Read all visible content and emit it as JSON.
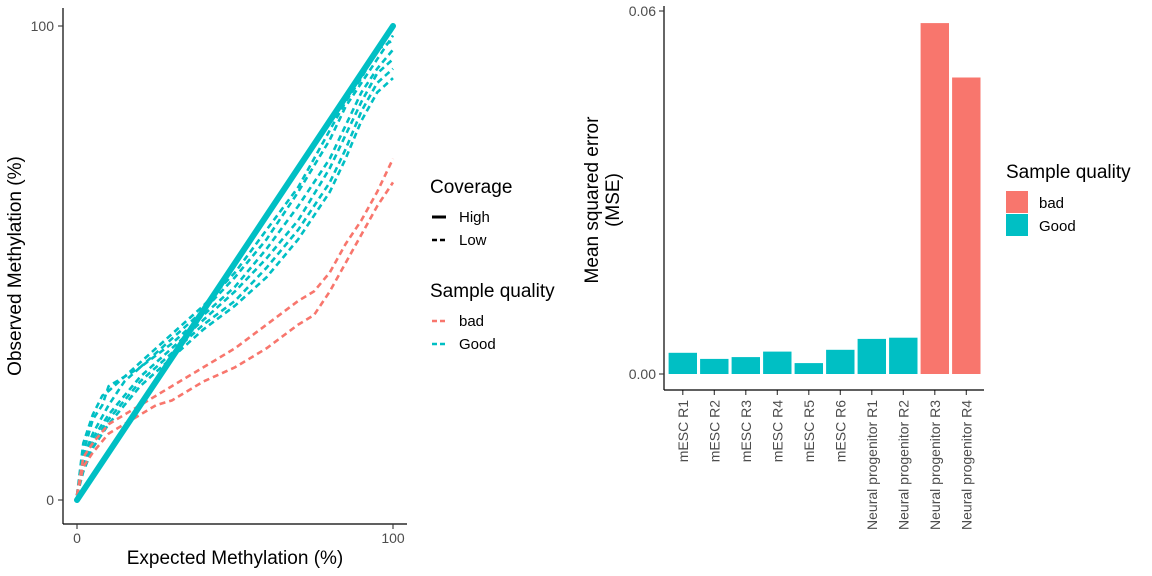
{
  "colors": {
    "bad": "#F8766D",
    "good": "#00BFC4"
  },
  "chart_data": [
    {
      "type": "line",
      "xlabel": "Expected Methylation (%)",
      "ylabel": "Observed Methylation (%)",
      "xlim": [
        0,
        100
      ],
      "ylim": [
        0,
        100
      ],
      "x_ticks": [
        "0",
        "100"
      ],
      "y_ticks": [
        "0",
        "100"
      ],
      "grid": false,
      "legend": {
        "placement": "right",
        "coverage_title": "Coverage",
        "coverage_items": [
          {
            "label": "High",
            "linetype": "solid"
          },
          {
            "label": "Low",
            "linetype": "dashed"
          }
        ],
        "quality_title": "Sample quality",
        "quality_items": [
          {
            "label": "bad",
            "color": "bad"
          },
          {
            "label": "Good",
            "color": "good"
          }
        ]
      },
      "series": [
        {
          "quality": "good",
          "coverage": "high",
          "points": [
            [
              0,
              0
            ],
            [
              20,
              20
            ],
            [
              40,
              40
            ],
            [
              60,
              60
            ],
            [
              80,
              80
            ],
            [
              100,
              100
            ]
          ]
        },
        {
          "quality": "good",
          "coverage": "low",
          "points": [
            [
              0,
              1
            ],
            [
              2,
              10
            ],
            [
              5,
              17
            ],
            [
              8,
              20
            ],
            [
              10,
              24
            ],
            [
              15,
              26
            ],
            [
              20,
              28
            ],
            [
              30,
              34
            ],
            [
              40,
              40
            ],
            [
              50,
              47
            ],
            [
              60,
              55
            ],
            [
              70,
              65
            ],
            [
              80,
              76
            ],
            [
              85,
              83
            ],
            [
              90,
              88
            ],
            [
              95,
              93
            ],
            [
              100,
              98
            ]
          ]
        },
        {
          "quality": "good",
          "coverage": "low",
          "points": [
            [
              0,
              1
            ],
            [
              2,
              12
            ],
            [
              5,
              18
            ],
            [
              8,
              22
            ],
            [
              10,
              23
            ],
            [
              15,
              26
            ],
            [
              20,
              29
            ],
            [
              30,
              35
            ],
            [
              40,
              41
            ],
            [
              50,
              48
            ],
            [
              60,
              57
            ],
            [
              70,
              66
            ],
            [
              80,
              78
            ],
            [
              85,
              84
            ],
            [
              90,
              89
            ],
            [
              95,
              95
            ],
            [
              100,
              97
            ]
          ]
        },
        {
          "quality": "good",
          "coverage": "low",
          "points": [
            [
              0,
              1
            ],
            [
              2,
              9
            ],
            [
              5,
              14
            ],
            [
              10,
              20
            ],
            [
              15,
              25
            ],
            [
              20,
              28
            ],
            [
              30,
              33
            ],
            [
              40,
              39
            ],
            [
              50,
              45
            ],
            [
              60,
              53
            ],
            [
              70,
              62
            ],
            [
              80,
              72
            ],
            [
              85,
              79
            ],
            [
              90,
              86
            ],
            [
              95,
              91
            ],
            [
              100,
              95
            ]
          ]
        },
        {
          "quality": "good",
          "coverage": "low",
          "points": [
            [
              0,
              1
            ],
            [
              2,
              8
            ],
            [
              5,
              13
            ],
            [
              10,
              18
            ],
            [
              15,
              22
            ],
            [
              20,
              26
            ],
            [
              30,
              32
            ],
            [
              40,
              38
            ],
            [
              50,
              44
            ],
            [
              60,
              51
            ],
            [
              70,
              59
            ],
            [
              80,
              70
            ],
            [
              85,
              77
            ],
            [
              90,
              84
            ],
            [
              95,
              90
            ],
            [
              100,
              93
            ]
          ]
        },
        {
          "quality": "good",
          "coverage": "low",
          "points": [
            [
              0,
              1
            ],
            [
              2,
              7
            ],
            [
              5,
              12
            ],
            [
              10,
              17
            ],
            [
              15,
              21
            ],
            [
              20,
              25
            ],
            [
              30,
              31
            ],
            [
              40,
              37
            ],
            [
              50,
              42
            ],
            [
              60,
              49
            ],
            [
              70,
              57
            ],
            [
              80,
              67
            ],
            [
              85,
              74
            ],
            [
              90,
              82
            ],
            [
              95,
              88
            ],
            [
              100,
              91
            ]
          ]
        },
        {
          "quality": "good",
          "coverage": "low",
          "points": [
            [
              0,
              1
            ],
            [
              2,
              6
            ],
            [
              5,
              11
            ],
            [
              10,
              16
            ],
            [
              15,
              20
            ],
            [
              20,
              24
            ],
            [
              30,
              30
            ],
            [
              40,
              36
            ],
            [
              50,
              41
            ],
            [
              60,
              47
            ],
            [
              70,
              55
            ],
            [
              80,
              65
            ],
            [
              85,
              72
            ],
            [
              90,
              80
            ],
            [
              95,
              86
            ],
            [
              100,
              89
            ]
          ]
        },
        {
          "quality": "bad",
          "coverage": "low",
          "points": [
            [
              0,
              1
            ],
            [
              2,
              9
            ],
            [
              5,
              12
            ],
            [
              10,
              16
            ],
            [
              15,
              18
            ],
            [
              20,
              20
            ],
            [
              25,
              22
            ],
            [
              30,
              24
            ],
            [
              40,
              28
            ],
            [
              50,
              32
            ],
            [
              60,
              37
            ],
            [
              70,
              42
            ],
            [
              75,
              44
            ],
            [
              80,
              48
            ],
            [
              85,
              54
            ],
            [
              90,
              59
            ],
            [
              95,
              65
            ],
            [
              100,
              72
            ]
          ]
        },
        {
          "quality": "bad",
          "coverage": "low",
          "points": [
            [
              0,
              1
            ],
            [
              2,
              7
            ],
            [
              5,
              10
            ],
            [
              10,
              14
            ],
            [
              15,
              16
            ],
            [
              20,
              18
            ],
            [
              25,
              20
            ],
            [
              30,
              21
            ],
            [
              40,
              25
            ],
            [
              50,
              28
            ],
            [
              60,
              32
            ],
            [
              70,
              37
            ],
            [
              75,
              39
            ],
            [
              80,
              44
            ],
            [
              85,
              50
            ],
            [
              90,
              56
            ],
            [
              95,
              62
            ],
            [
              100,
              67
            ]
          ]
        }
      ]
    },
    {
      "type": "bar",
      "ylabel_lines": [
        "Mean squared error",
        "(MSE)"
      ],
      "xlabel": "",
      "ylim": [
        0,
        0.06
      ],
      "y_ticks": [
        "0.00",
        "0.06"
      ],
      "grid": false,
      "legend": {
        "placement": "right",
        "title": "Sample quality",
        "items": [
          {
            "label": "bad",
            "color": "bad"
          },
          {
            "label": "Good",
            "color": "good"
          }
        ]
      },
      "categories": [
        "mESC R1",
        "mESC R2",
        "mESC R3",
        "mESC R4",
        "mESC R5",
        "mESC R6",
        "Neural progenitor R1",
        "Neural progenitor R2",
        "Neural progenitor R3",
        "Neural progenitor R4"
      ],
      "values": [
        0.0035,
        0.0025,
        0.0028,
        0.0037,
        0.0018,
        0.004,
        0.0058,
        0.006,
        0.058,
        0.049
      ],
      "quality": [
        "good",
        "good",
        "good",
        "good",
        "good",
        "good",
        "good",
        "good",
        "bad",
        "bad"
      ]
    }
  ]
}
